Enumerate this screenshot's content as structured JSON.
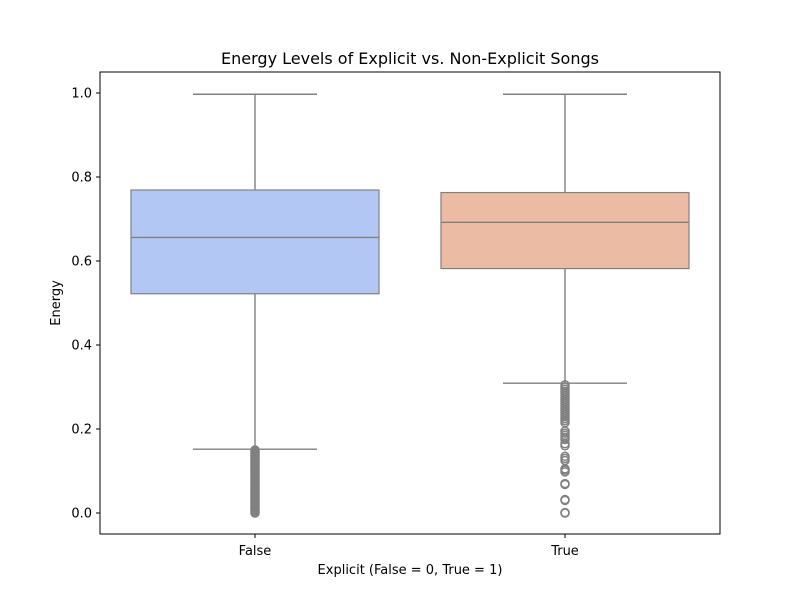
{
  "chart_data": {
    "type": "box",
    "title": "Energy Levels of Explicit vs. Non-Explicit Songs",
    "xlabel": "Explicit (False = 0, True = 1)",
    "ylabel": "Energy",
    "ylim": [
      -0.05,
      1.05
    ],
    "yticks": [
      0.0,
      0.2,
      0.4,
      0.6,
      0.8,
      1.0
    ],
    "ytick_labels": [
      "0.0",
      "0.2",
      "0.4",
      "0.6",
      "0.8",
      "1.0"
    ],
    "categories": [
      "False",
      "True"
    ],
    "grid": false,
    "boxes": [
      {
        "category": "False",
        "whisker_low": 0.152,
        "q1": 0.522,
        "median": 0.656,
        "q3": 0.769,
        "whisker_high": 0.997,
        "color": "#b3c7f4",
        "outliers": [
          0.0,
          0.003,
          0.006,
          0.009,
          0.012,
          0.015,
          0.018,
          0.021,
          0.024,
          0.027,
          0.03,
          0.033,
          0.036,
          0.039,
          0.042,
          0.045,
          0.048,
          0.051,
          0.054,
          0.057,
          0.06,
          0.063,
          0.066,
          0.069,
          0.072,
          0.075,
          0.078,
          0.081,
          0.084,
          0.087,
          0.09,
          0.093,
          0.096,
          0.099,
          0.102,
          0.105,
          0.108,
          0.111,
          0.114,
          0.117,
          0.12,
          0.123,
          0.126,
          0.129,
          0.132,
          0.135,
          0.138,
          0.141,
          0.144,
          0.147,
          0.15
        ]
      },
      {
        "category": "True",
        "whisker_low": 0.309,
        "q1": 0.582,
        "median": 0.692,
        "q3": 0.763,
        "whisker_high": 0.997,
        "color": "#ecbba4",
        "outliers": [
          0.0,
          0.001,
          0.03,
          0.032,
          0.068,
          0.07,
          0.098,
          0.102,
          0.105,
          0.125,
          0.13,
          0.135,
          0.16,
          0.165,
          0.175,
          0.18,
          0.185,
          0.19,
          0.195,
          0.215,
          0.22,
          0.225,
          0.23,
          0.235,
          0.24,
          0.245,
          0.25,
          0.255,
          0.26,
          0.265,
          0.27,
          0.275,
          0.28,
          0.285,
          0.29,
          0.295,
          0.3,
          0.305
        ]
      }
    ],
    "line_color": "#808080"
  }
}
